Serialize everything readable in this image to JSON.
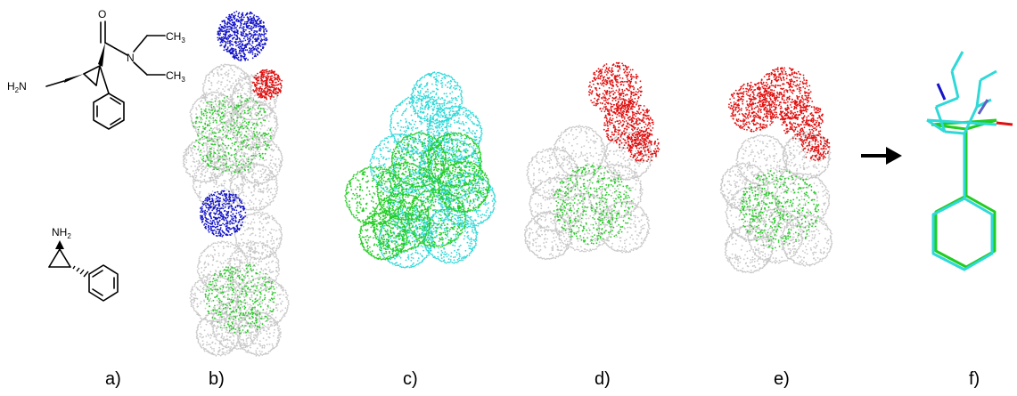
{
  "panels": [
    {
      "id": "a",
      "label": "a)"
    },
    {
      "id": "b",
      "label": "b)"
    },
    {
      "id": "c",
      "label": "c)"
    },
    {
      "id": "d",
      "label": "d)"
    },
    {
      "id": "e",
      "label": "e)"
    },
    {
      "id": "f",
      "label": "f)"
    }
  ],
  "molecule_1": {
    "atoms": {
      "oxygen": "O",
      "nitrogen": "N",
      "amine": "H2N",
      "methyl_top": "CH3",
      "methyl_bottom": "CH3"
    }
  },
  "molecule_2": {
    "atoms": {
      "amine": "NH2"
    }
  },
  "colors": {
    "blue": "#1515c8",
    "red": "#e01010",
    "green": "#22cc22",
    "cyan": "#30d8d8",
    "grey": "#c8c8c8",
    "arrow": "#000000"
  }
}
